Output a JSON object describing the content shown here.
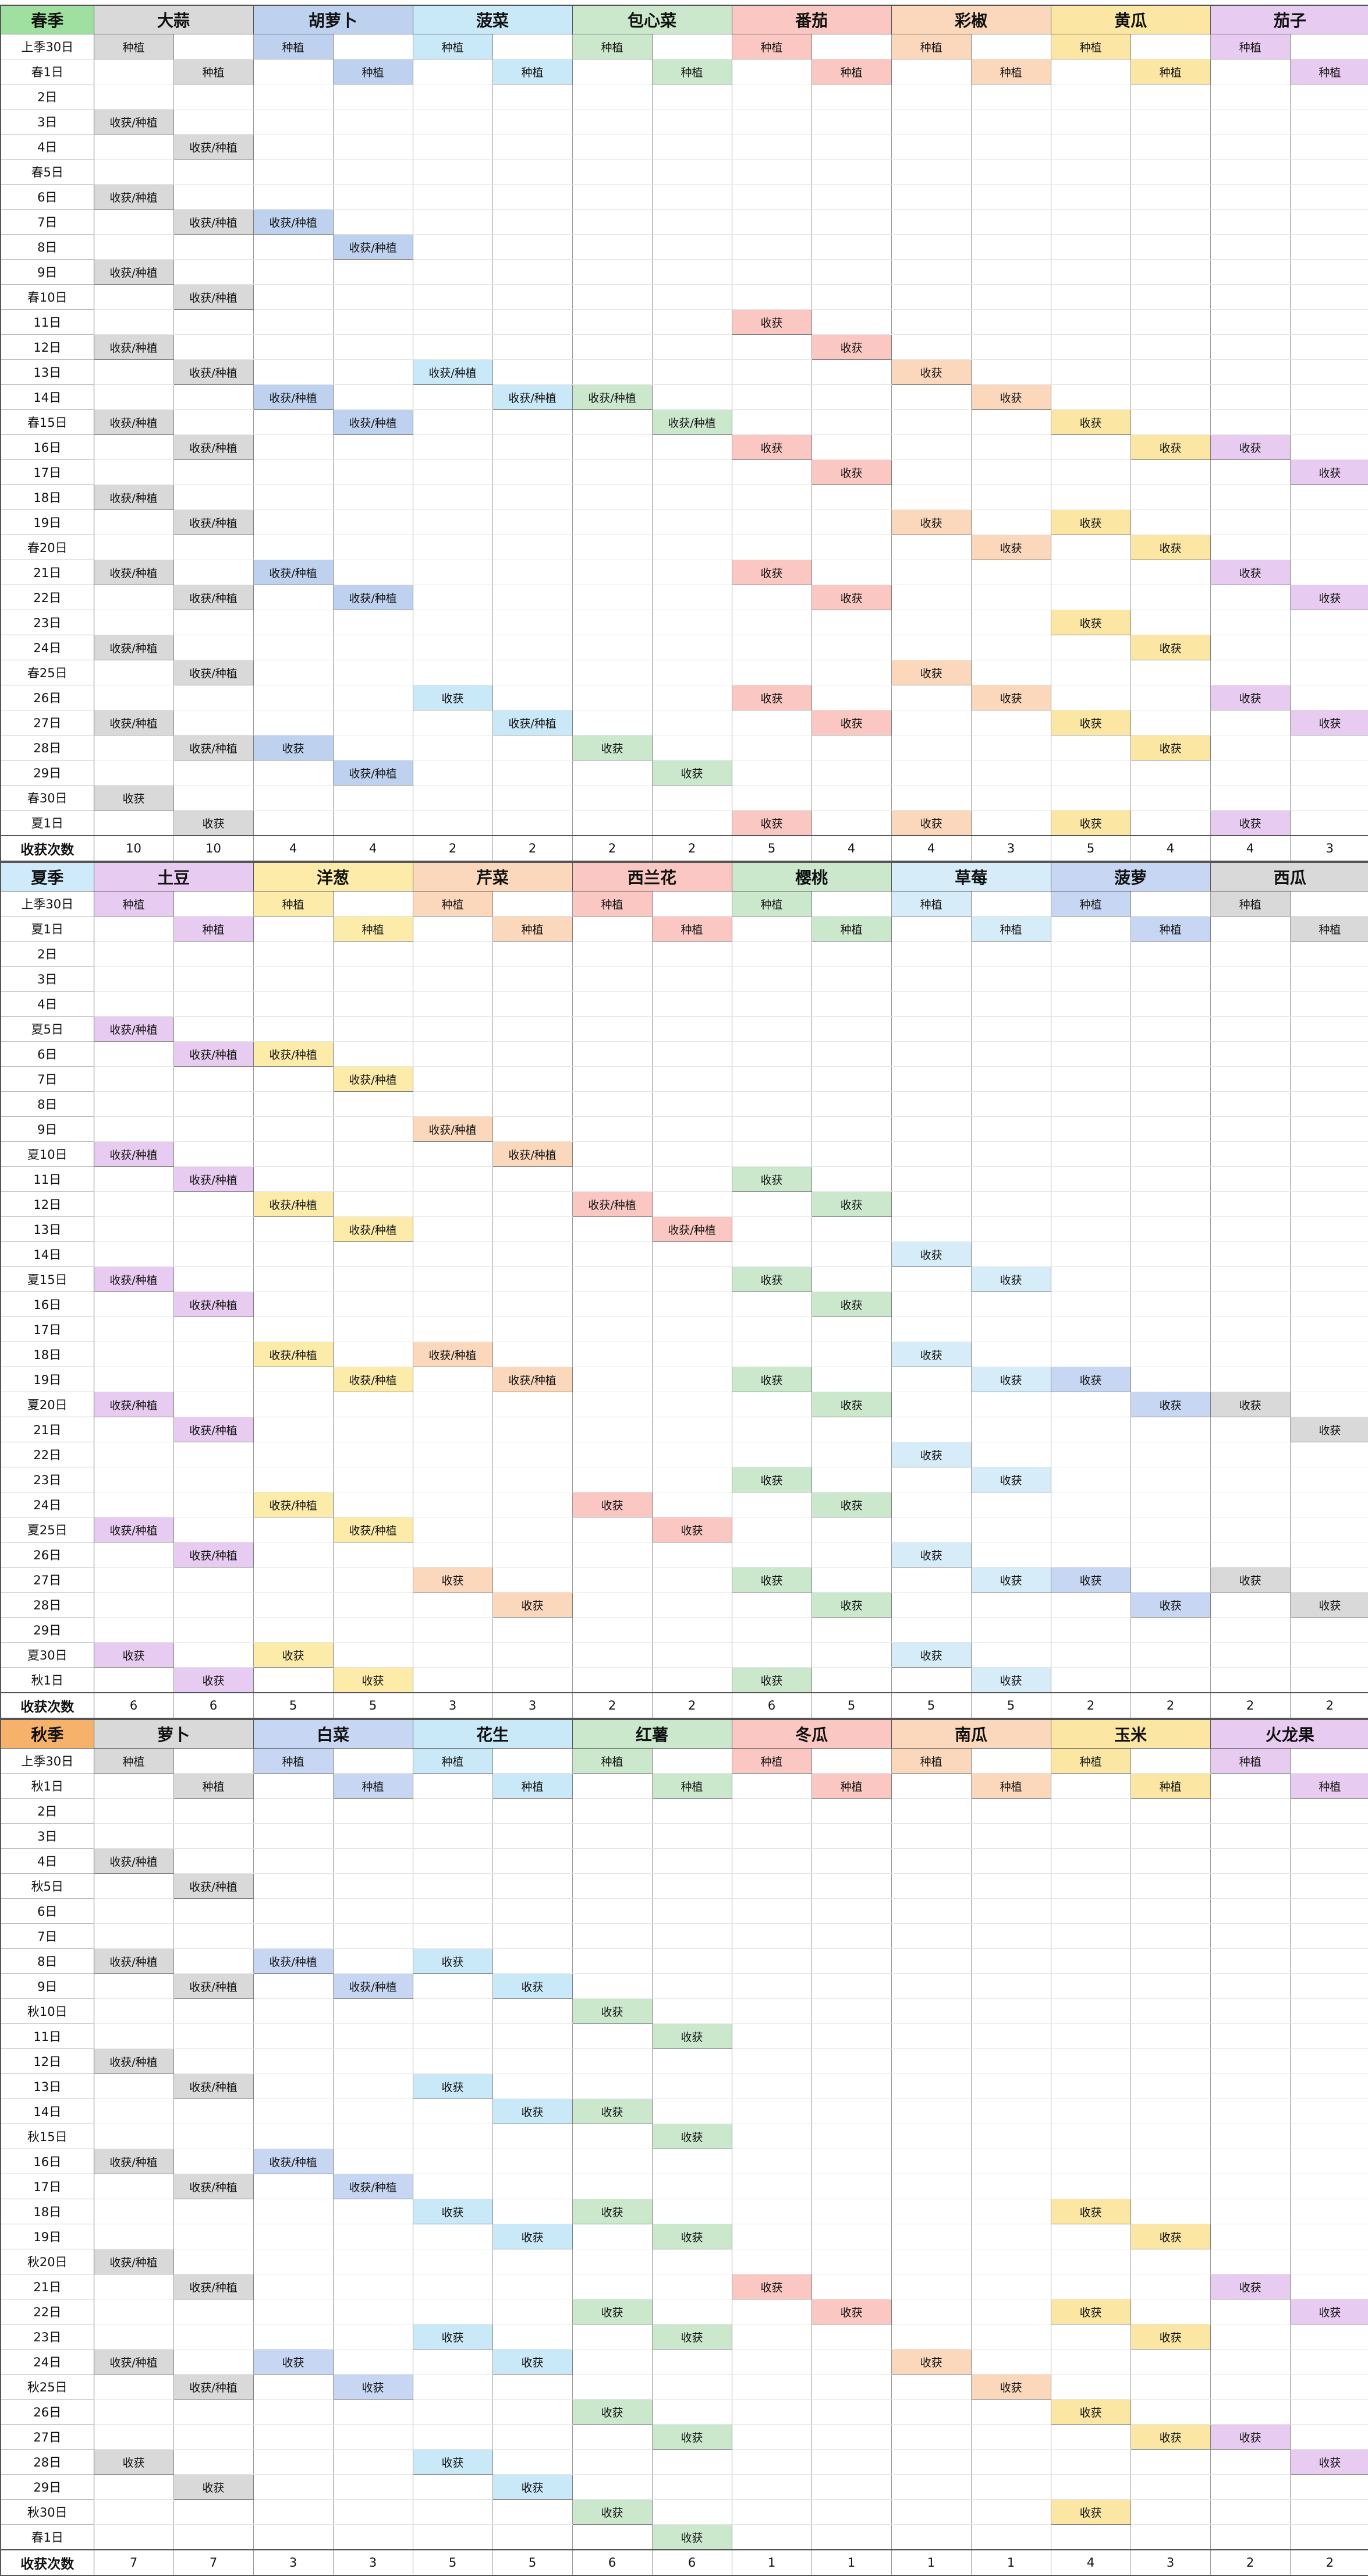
{
  "legend": {
    "plant": "种植",
    "harvest": "收获",
    "harvest_plant": "收获/种植"
  },
  "seasons": [
    {
      "name": "春季",
      "header_color": "#9fdf9f",
      "rows": [
        "上季30日",
        "春1日",
        "2日",
        "3日",
        "4日",
        "春5日",
        "6日",
        "7日",
        "8日",
        "9日",
        "春10日",
        "11日",
        "12日",
        "13日",
        "14日",
        "春15日",
        "16日",
        "17日",
        "18日",
        "19日",
        "春20日",
        "21日",
        "22日",
        "23日",
        "24日",
        "春25日",
        "26日",
        "27日",
        "28日",
        "29日",
        "春30日",
        "夏1日",
        "收获次数"
      ],
      "crops": [
        {
          "name": "大蒜",
          "color": "#d9d9d9",
          "cols": [
            {
              "p": [
                0
              ],
              "hp": [
                3,
                6,
                9,
                12,
                15,
                18,
                21,
                24,
                27
              ],
              "h": [
                30
              ],
              "count": "10"
            },
            {
              "p": [
                1
              ],
              "hp": [
                4,
                7,
                10,
                13,
                16,
                19,
                22,
                25,
                28
              ],
              "h": [
                31
              ],
              "count": "10"
            }
          ]
        },
        {
          "name": "胡萝卜",
          "color": "#bed2f0",
          "cols": [
            {
              "p": [
                0
              ],
              "hp": [
                7,
                14,
                21
              ],
              "h": [
                28
              ],
              "count": "4"
            },
            {
              "p": [
                1
              ],
              "hp": [
                8,
                15,
                22,
                29
              ],
              "h": [],
              "count": "4"
            }
          ]
        },
        {
          "name": "菠菜",
          "color": "#c9e8f8",
          "cols": [
            {
              "p": [
                0
              ],
              "hp": [
                13
              ],
              "h": [
                26
              ],
              "count": "2"
            },
            {
              "p": [
                1
              ],
              "hp": [
                14,
                27
              ],
              "h": [],
              "count": "2"
            }
          ]
        },
        {
          "name": "包心菜",
          "color": "#cbe8cd",
          "cols": [
            {
              "p": [
                0
              ],
              "hp": [
                14
              ],
              "h": [
                28
              ],
              "count": "2"
            },
            {
              "p": [
                1
              ],
              "hp": [
                15
              ],
              "h": [
                29
              ],
              "count": "2"
            }
          ]
        },
        {
          "name": "番茄",
          "color": "#fac7c3",
          "cols": [
            {
              "p": [
                0
              ],
              "hp": [],
              "h": [
                11,
                16,
                21,
                26,
                31
              ],
              "count": "5"
            },
            {
              "p": [
                1
              ],
              "hp": [],
              "h": [
                12,
                17,
                22,
                27
              ],
              "count": "4"
            }
          ]
        },
        {
          "name": "彩椒",
          "color": "#fbd8bc",
          "cols": [
            {
              "p": [
                0
              ],
              "hp": [],
              "h": [
                13,
                19,
                25,
                31
              ],
              "count": "4"
            },
            {
              "p": [
                1
              ],
              "hp": [],
              "h": [
                14,
                20,
                26
              ],
              "count": "3"
            }
          ]
        },
        {
          "name": "黄瓜",
          "color": "#fbe7a3",
          "cols": [
            {
              "p": [
                0
              ],
              "hp": [],
              "h": [
                15,
                19,
                23,
                27,
                31
              ],
              "count": "5"
            },
            {
              "p": [
                1
              ],
              "hp": [],
              "h": [
                16,
                20,
                24,
                28
              ],
              "count": "4"
            }
          ]
        },
        {
          "name": "茄子",
          "color": "#e7cbf1",
          "cols": [
            {
              "p": [
                0
              ],
              "hp": [],
              "h": [
                16,
                21,
                26,
                31
              ],
              "count": "4"
            },
            {
              "p": [
                1
              ],
              "hp": [],
              "h": [
                17,
                22,
                27
              ],
              "count": "3"
            }
          ]
        }
      ]
    },
    {
      "name": "夏季",
      "header_color": "#cfeafa",
      "rows": [
        "上季30日",
        "夏1日",
        "2日",
        "3日",
        "4日",
        "夏5日",
        "6日",
        "7日",
        "8日",
        "9日",
        "夏10日",
        "11日",
        "12日",
        "13日",
        "14日",
        "夏15日",
        "16日",
        "17日",
        "18日",
        "19日",
        "夏20日",
        "21日",
        "22日",
        "23日",
        "24日",
        "夏25日",
        "26日",
        "27日",
        "28日",
        "29日",
        "夏30日",
        "秋1日",
        "收获次数"
      ],
      "crops": [
        {
          "name": "土豆",
          "color": "#e7cbf1",
          "cols": [
            {
              "p": [
                0
              ],
              "hp": [
                5,
                10,
                15,
                20,
                25
              ],
              "h": [
                30
              ],
              "count": "6"
            },
            {
              "p": [
                1
              ],
              "hp": [
                6,
                11,
                16,
                21,
                26
              ],
              "h": [
                31
              ],
              "count": "6"
            }
          ]
        },
        {
          "name": "洋葱",
          "color": "#fdeca9",
          "cols": [
            {
              "p": [
                0
              ],
              "hp": [
                6,
                12,
                18,
                24
              ],
              "h": [
                30
              ],
              "count": "5"
            },
            {
              "p": [
                1
              ],
              "hp": [
                7,
                13,
                19,
                25
              ],
              "h": [
                31
              ],
              "count": "5"
            }
          ]
        },
        {
          "name": "芹菜",
          "color": "#fbd8bc",
          "cols": [
            {
              "p": [
                0
              ],
              "hp": [
                9,
                18
              ],
              "h": [
                27
              ],
              "count": "3"
            },
            {
              "p": [
                1
              ],
              "hp": [
                10,
                19
              ],
              "h": [
                28
              ],
              "count": "3"
            }
          ]
        },
        {
          "name": "西兰花",
          "color": "#fac7c3",
          "cols": [
            {
              "p": [
                0
              ],
              "hp": [
                12
              ],
              "h": [
                24
              ],
              "count": "2"
            },
            {
              "p": [
                1
              ],
              "hp": [
                13
              ],
              "h": [
                25
              ],
              "count": "2"
            }
          ]
        },
        {
          "name": "樱桃",
          "color": "#cbe8cd",
          "cols": [
            {
              "p": [
                0
              ],
              "hp": [],
              "h": [
                11,
                15,
                19,
                23,
                27,
                31
              ],
              "count": "6"
            },
            {
              "p": [
                1
              ],
              "hp": [],
              "h": [
                12,
                16,
                20,
                24,
                28
              ],
              "count": "5"
            }
          ]
        },
        {
          "name": "草莓",
          "color": "#d7ecf9",
          "cols": [
            {
              "p": [
                0
              ],
              "hp": [],
              "h": [
                14,
                18,
                22,
                26,
                30
              ],
              "count": "5"
            },
            {
              "p": [
                1
              ],
              "hp": [],
              "h": [
                15,
                19,
                23,
                27,
                31
              ],
              "count": "5"
            }
          ]
        },
        {
          "name": "菠萝",
          "color": "#c7d7f3",
          "cols": [
            {
              "p": [
                0
              ],
              "hp": [],
              "h": [
                19,
                27
              ],
              "count": "2"
            },
            {
              "p": [
                1
              ],
              "hp": [],
              "h": [
                20,
                28
              ],
              "count": "2"
            }
          ]
        },
        {
          "name": "西瓜",
          "color": "#d9d9d9",
          "cols": [
            {
              "p": [
                0
              ],
              "hp": [],
              "h": [
                20,
                27
              ],
              "count": "2"
            },
            {
              "p": [
                1
              ],
              "hp": [],
              "h": [
                21,
                28
              ],
              "count": "2"
            }
          ]
        }
      ]
    },
    {
      "name": "秋季",
      "header_color": "#f6b26b",
      "rows": [
        "上季30日",
        "秋1日",
        "2日",
        "3日",
        "4日",
        "秋5日",
        "6日",
        "7日",
        "8日",
        "9日",
        "秋10日",
        "11日",
        "12日",
        "13日",
        "14日",
        "秋15日",
        "16日",
        "17日",
        "18日",
        "19日",
        "秋20日",
        "21日",
        "22日",
        "23日",
        "24日",
        "秋25日",
        "26日",
        "27日",
        "28日",
        "29日",
        "秋30日",
        "春1日",
        "收获次数"
      ],
      "crops": [
        {
          "name": "萝卜",
          "color": "#d9d9d9",
          "cols": [
            {
              "p": [
                0
              ],
              "hp": [
                4,
                8,
                12,
                16,
                20,
                24
              ],
              "h": [
                28
              ],
              "count": "7"
            },
            {
              "p": [
                1
              ],
              "hp": [
                5,
                9,
                13,
                17,
                21,
                25
              ],
              "h": [
                29
              ],
              "count": "7"
            }
          ]
        },
        {
          "name": "白菜",
          "color": "#c7d7f3",
          "cols": [
            {
              "p": [
                0
              ],
              "hp": [
                8,
                16
              ],
              "h": [
                24
              ],
              "count": "3"
            },
            {
              "p": [
                1
              ],
              "hp": [
                9,
                17
              ],
              "h": [
                25
              ],
              "count": "3"
            }
          ]
        },
        {
          "name": "花生",
          "color": "#c9e8f8",
          "cols": [
            {
              "p": [
                0
              ],
              "hp": [],
              "h": [
                8,
                13,
                18,
                23,
                28
              ],
              "count": "5"
            },
            {
              "p": [
                1
              ],
              "hp": [],
              "h": [
                9,
                14,
                19,
                24,
                29
              ],
              "count": "5"
            }
          ]
        },
        {
          "name": "红薯",
          "color": "#cbe8cd",
          "cols": [
            {
              "p": [
                0
              ],
              "hp": [],
              "h": [
                10,
                14,
                18,
                22,
                26,
                30
              ],
              "count": "6"
            },
            {
              "p": [
                1
              ],
              "hp": [],
              "h": [
                11,
                15,
                19,
                23,
                27,
                31
              ],
              "count": "6"
            }
          ]
        },
        {
          "name": "冬瓜",
          "color": "#fac7c3",
          "cols": [
            {
              "p": [
                0
              ],
              "hp": [],
              "h": [
                21
              ],
              "count": "1"
            },
            {
              "p": [
                1
              ],
              "hp": [],
              "h": [
                22
              ],
              "count": "1"
            }
          ]
        },
        {
          "name": "南瓜",
          "color": "#fbd8bc",
          "cols": [
            {
              "p": [
                0
              ],
              "hp": [],
              "h": [
                24
              ],
              "count": "1"
            },
            {
              "p": [
                1
              ],
              "hp": [],
              "h": [
                25
              ],
              "count": "1"
            }
          ]
        },
        {
          "name": "玉米",
          "color": "#fbe7a3",
          "cols": [
            {
              "p": [
                0
              ],
              "hp": [],
              "h": [
                18,
                22,
                26,
                30
              ],
              "count": "4"
            },
            {
              "p": [
                1
              ],
              "hp": [],
              "h": [
                19,
                23,
                27
              ],
              "count": "3"
            }
          ]
        },
        {
          "name": "火龙果",
          "color": "#e7cbf1",
          "cols": [
            {
              "p": [
                0
              ],
              "hp": [],
              "h": [
                21,
                27
              ],
              "count": "2"
            },
            {
              "p": [
                1
              ],
              "hp": [],
              "h": [
                22,
                28
              ],
              "count": "2"
            }
          ]
        }
      ]
    }
  ]
}
